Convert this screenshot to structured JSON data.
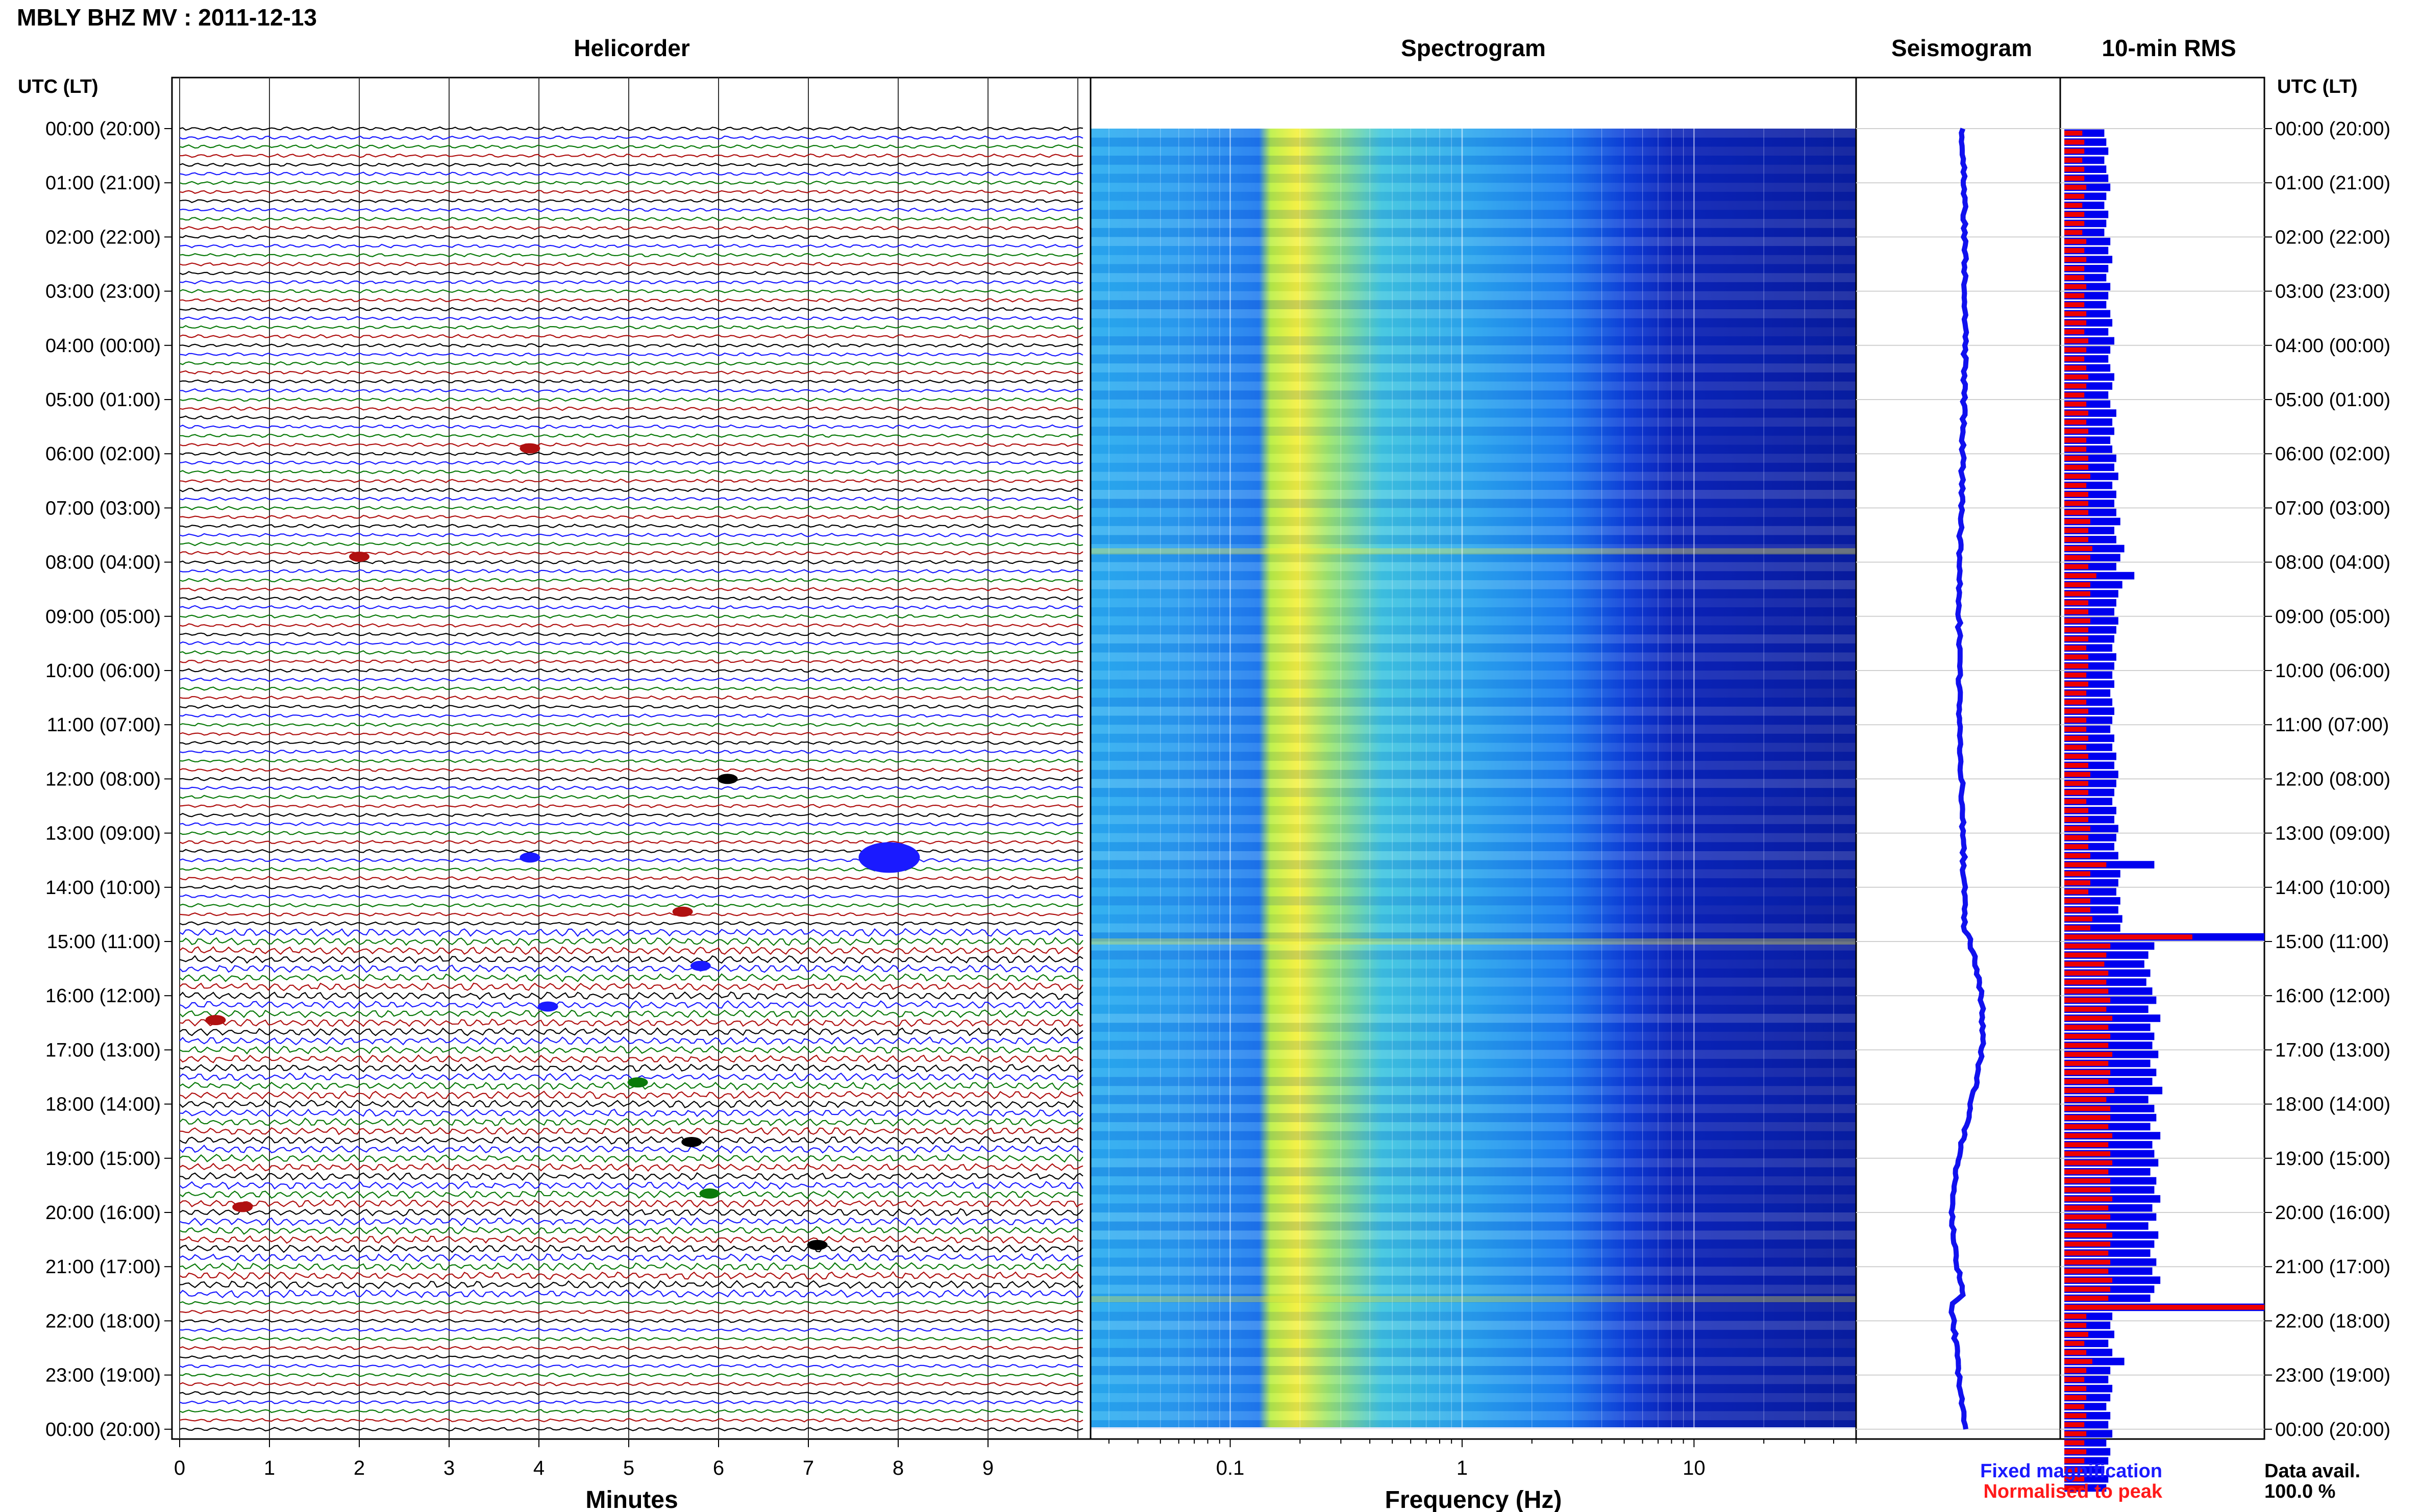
{
  "header": {
    "station_title": "MBLY BHZ MV : 2011-12-13"
  },
  "panels": {
    "helicorder": "Helicorder",
    "spectrogram": "Spectrogram",
    "seismogram": "Seismogram",
    "rms": "10-min RMS"
  },
  "axis_titles": {
    "left_time": "UTC (LT)",
    "right_time": "UTC (LT)",
    "minutes": "Minutes",
    "frequency": "Frequency (Hz)"
  },
  "legend": {
    "fixed": "Fixed magnification",
    "normalised": "Normalised to peak",
    "fixed_color": "#1a1aff",
    "normalised_color": "#ff1a1a"
  },
  "data_avail": {
    "label": "Data avail.",
    "value": "100.0 %"
  },
  "colors": {
    "trace_cycle": [
      "#000000",
      "#1a1aff",
      "#0a7a0a",
      "#b01010"
    ],
    "rms_fixed": "#0000ee",
    "rms_norm": "#ee0000"
  },
  "chart_data": {
    "type": "heatmap",
    "time_labels": [
      "00:00 (20:00)",
      "01:00 (21:00)",
      "02:00 (22:00)",
      "03:00 (23:00)",
      "04:00 (00:00)",
      "05:00 (01:00)",
      "06:00 (02:00)",
      "07:00 (03:00)",
      "08:00 (04:00)",
      "09:00 (05:00)",
      "10:00 (06:00)",
      "11:00 (07:00)",
      "12:00 (08:00)",
      "13:00 (09:00)",
      "14:00 (10:00)",
      "15:00 (11:00)",
      "16:00 (12:00)",
      "17:00 (13:00)",
      "18:00 (14:00)",
      "19:00 (15:00)",
      "20:00 (16:00)",
      "21:00 (17:00)",
      "22:00 (18:00)",
      "23:00 (19:00)",
      "00:00 (20:00)"
    ],
    "minute_ticks": [
      "0",
      "1",
      "2",
      "3",
      "4",
      "5",
      "6",
      "7",
      "8",
      "9"
    ],
    "minute_range": [
      0,
      10
    ],
    "frequency_ticks": [
      "0.1",
      "1",
      "10"
    ],
    "frequency_range_hz": [
      0.025,
      50
    ],
    "frequency_scale": "log",
    "rows_per_hour": 6,
    "events": [
      {
        "hour": 5.9,
        "minute": 3.9
      },
      {
        "hour": 7.9,
        "minute": 2.0
      },
      {
        "hour": 12.0,
        "minute": 6.1
      },
      {
        "hour": 13.45,
        "minute": 3.9
      },
      {
        "hour": 13.45,
        "minute": 7.9
      },
      {
        "hour": 14.45,
        "minute": 5.6
      },
      {
        "hour": 15.45,
        "minute": 5.8
      },
      {
        "hour": 16.2,
        "minute": 4.1
      },
      {
        "hour": 16.45,
        "minute": 0.4
      },
      {
        "hour": 17.6,
        "minute": 5.1
      },
      {
        "hour": 18.7,
        "minute": 5.7
      },
      {
        "hour": 19.65,
        "minute": 5.9
      },
      {
        "hour": 19.9,
        "minute": 0.7
      },
      {
        "hour": 20.6,
        "minute": 7.1
      }
    ],
    "rms_fixed": [
      2,
      2.1,
      2.2,
      2,
      2.1,
      2.2,
      2.3,
      2.1,
      2,
      2.2,
      2.1,
      2,
      2.3,
      2.2,
      2.4,
      2.2,
      2.1,
      2.3,
      2.2,
      2.1,
      2.3,
      2.4,
      2.2,
      2.5,
      2.3,
      2.2,
      2.3,
      2.5,
      2.4,
      2.2,
      2.3,
      2.6,
      2.4,
      2.5,
      2.3,
      2.4,
      2.6,
      2.5,
      2.7,
      2.4,
      2.6,
      2.5,
      2.6,
      2.8,
      2.5,
      2.6,
      3.0,
      2.8,
      2.6,
      3.5,
      2.9,
      2.7,
      2.6,
      2.5,
      2.7,
      2.6,
      2.5,
      2.4,
      2.6,
      2.5,
      2.4,
      2.5,
      2.3,
      2.4,
      2.5,
      2.4,
      2.3,
      2.5,
      2.4,
      2.6,
      2.5,
      2.7,
      2.6,
      2.5,
      2.4,
      2.6,
      2.5,
      2.7,
      2.6,
      2.5,
      2.7,
      4.5,
      2.8,
      2.7,
      2.6,
      2.8,
      2.7,
      2.9,
      2.8,
      10,
      4.5,
      4.2,
      4.0,
      4.3,
      4.1,
      4.4,
      4.6,
      4.2,
      4.8,
      4.3,
      4.5,
      4.4,
      4.7,
      4.3,
      4.6,
      4.4,
      4.9,
      4.2,
      4.5,
      4.6,
      4.3,
      4.8,
      4.4,
      4.5,
      4.7,
      4.3,
      4.6,
      4.5,
      4.8,
      4.4,
      4.6,
      4.2,
      4.7,
      4.5,
      4.3,
      4.6,
      4.4,
      4.8,
      4.5,
      4.3,
      10,
      2.4,
      2.3,
      2.5,
      2.2,
      2.4,
      3.0,
      2.3,
      2.2,
      2.4,
      2.3,
      2.1,
      2.3,
      2.2,
      2.4,
      2.1,
      2.3,
      2.2,
      2.0,
      2.2,
      2.1
    ],
    "rms_norm": [
      0.9,
      1.0,
      1.0,
      0.9,
      1.0,
      1.0,
      1.1,
      1.0,
      0.9,
      1.0,
      1.0,
      0.9,
      1.1,
      1.0,
      1.1,
      1.0,
      1.0,
      1.1,
      1.0,
      1.0,
      1.1,
      1.1,
      1.0,
      1.2,
      1.1,
      1.0,
      1.1,
      1.2,
      1.1,
      1.0,
      1.1,
      1.2,
      1.1,
      1.2,
      1.1,
      1.1,
      1.2,
      1.2,
      1.3,
      1.1,
      1.2,
      1.2,
      1.2,
      1.3,
      1.2,
      1.2,
      1.4,
      1.3,
      1.2,
      1.6,
      1.3,
      1.3,
      1.2,
      1.2,
      1.3,
      1.2,
      1.2,
      1.1,
      1.2,
      1.2,
      1.1,
      1.2,
      1.1,
      1.1,
      1.2,
      1.1,
      1.1,
      1.2,
      1.1,
      1.2,
      1.2,
      1.3,
      1.2,
      1.2,
      1.1,
      1.2,
      1.2,
      1.3,
      1.2,
      1.2,
      1.3,
      2.1,
      1.3,
      1.3,
      1.2,
      1.3,
      1.3,
      1.4,
      1.3,
      6.4,
      2.3,
      2.1,
      2.0,
      2.2,
      2.1,
      2.2,
      2.3,
      2.1,
      2.4,
      2.2,
      2.3,
      2.2,
      2.4,
      2.2,
      2.3,
      2.2,
      2.5,
      2.1,
      2.3,
      2.3,
      2.2,
      2.4,
      2.2,
      2.3,
      2.4,
      2.2,
      2.3,
      2.3,
      2.4,
      2.2,
      2.3,
      2.1,
      2.4,
      2.3,
      2.2,
      2.3,
      2.2,
      2.4,
      2.3,
      2.2,
      10,
      1.1,
      1.1,
      1.2,
      1.0,
      1.1,
      1.4,
      1.1,
      1.0,
      1.1,
      1.1,
      1.0,
      1.1,
      1.0,
      1.1,
      1.0,
      1.1,
      1.0,
      0.9,
      1.0,
      1.0
    ],
    "rms_max": 10
  }
}
